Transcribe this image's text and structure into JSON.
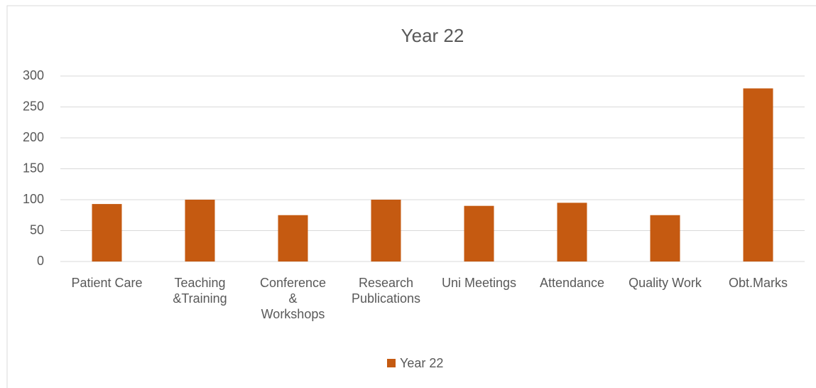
{
  "chart_data": {
    "type": "bar",
    "title": "Year 22",
    "categories": [
      "Patient Care",
      "Teaching\n&Training",
      "Conference\n&\nWorkshops",
      "Research\nPublications",
      "Uni Meetings",
      "Attendance",
      "Quality Work",
      "Obt.Marks"
    ],
    "series": [
      {
        "name": "Year 22",
        "color": "#c55a11",
        "values": [
          93,
          100,
          75,
          100,
          90,
          95,
          75,
          280
        ]
      }
    ],
    "ylim": [
      0,
      300
    ],
    "yticks": [
      0,
      50,
      100,
      150,
      200,
      250,
      300
    ],
    "grid": true,
    "legend": "bottom"
  }
}
